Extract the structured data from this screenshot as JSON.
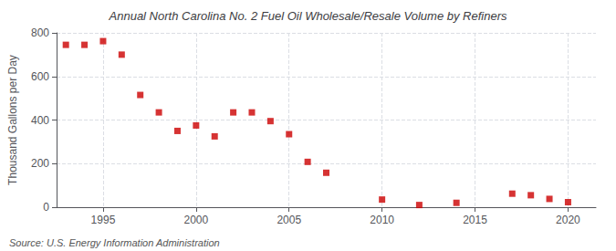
{
  "chart_data": {
    "type": "scatter",
    "title": "Annual North Carolina No. 2 Fuel Oil Wholesale/Resale Volume by Refiners",
    "ylabel": "Thousand Gallons per Day",
    "annotations": [
      "Source: U.S. Energy Information Administration"
    ],
    "x": [
      1993,
      1994,
      1995,
      1996,
      1997,
      1998,
      1999,
      2000,
      2001,
      2002,
      2003,
      2004,
      2005,
      2006,
      2007,
      2010,
      2012,
      2014,
      2017,
      2018,
      2019,
      2020
    ],
    "values": [
      745,
      745,
      762,
      700,
      515,
      435,
      350,
      375,
      325,
      435,
      435,
      395,
      335,
      208,
      158,
      35,
      10,
      20,
      62,
      55,
      38,
      23
    ],
    "color": "#cc0000",
    "marker": "square",
    "xlim": [
      1992.5,
      2021.5
    ],
    "xticks": [
      1995,
      2000,
      2005,
      2010,
      2015,
      2020
    ],
    "ylim": [
      0,
      800
    ],
    "yticks": [
      0,
      200,
      400,
      600,
      800
    ],
    "grid": true
  }
}
